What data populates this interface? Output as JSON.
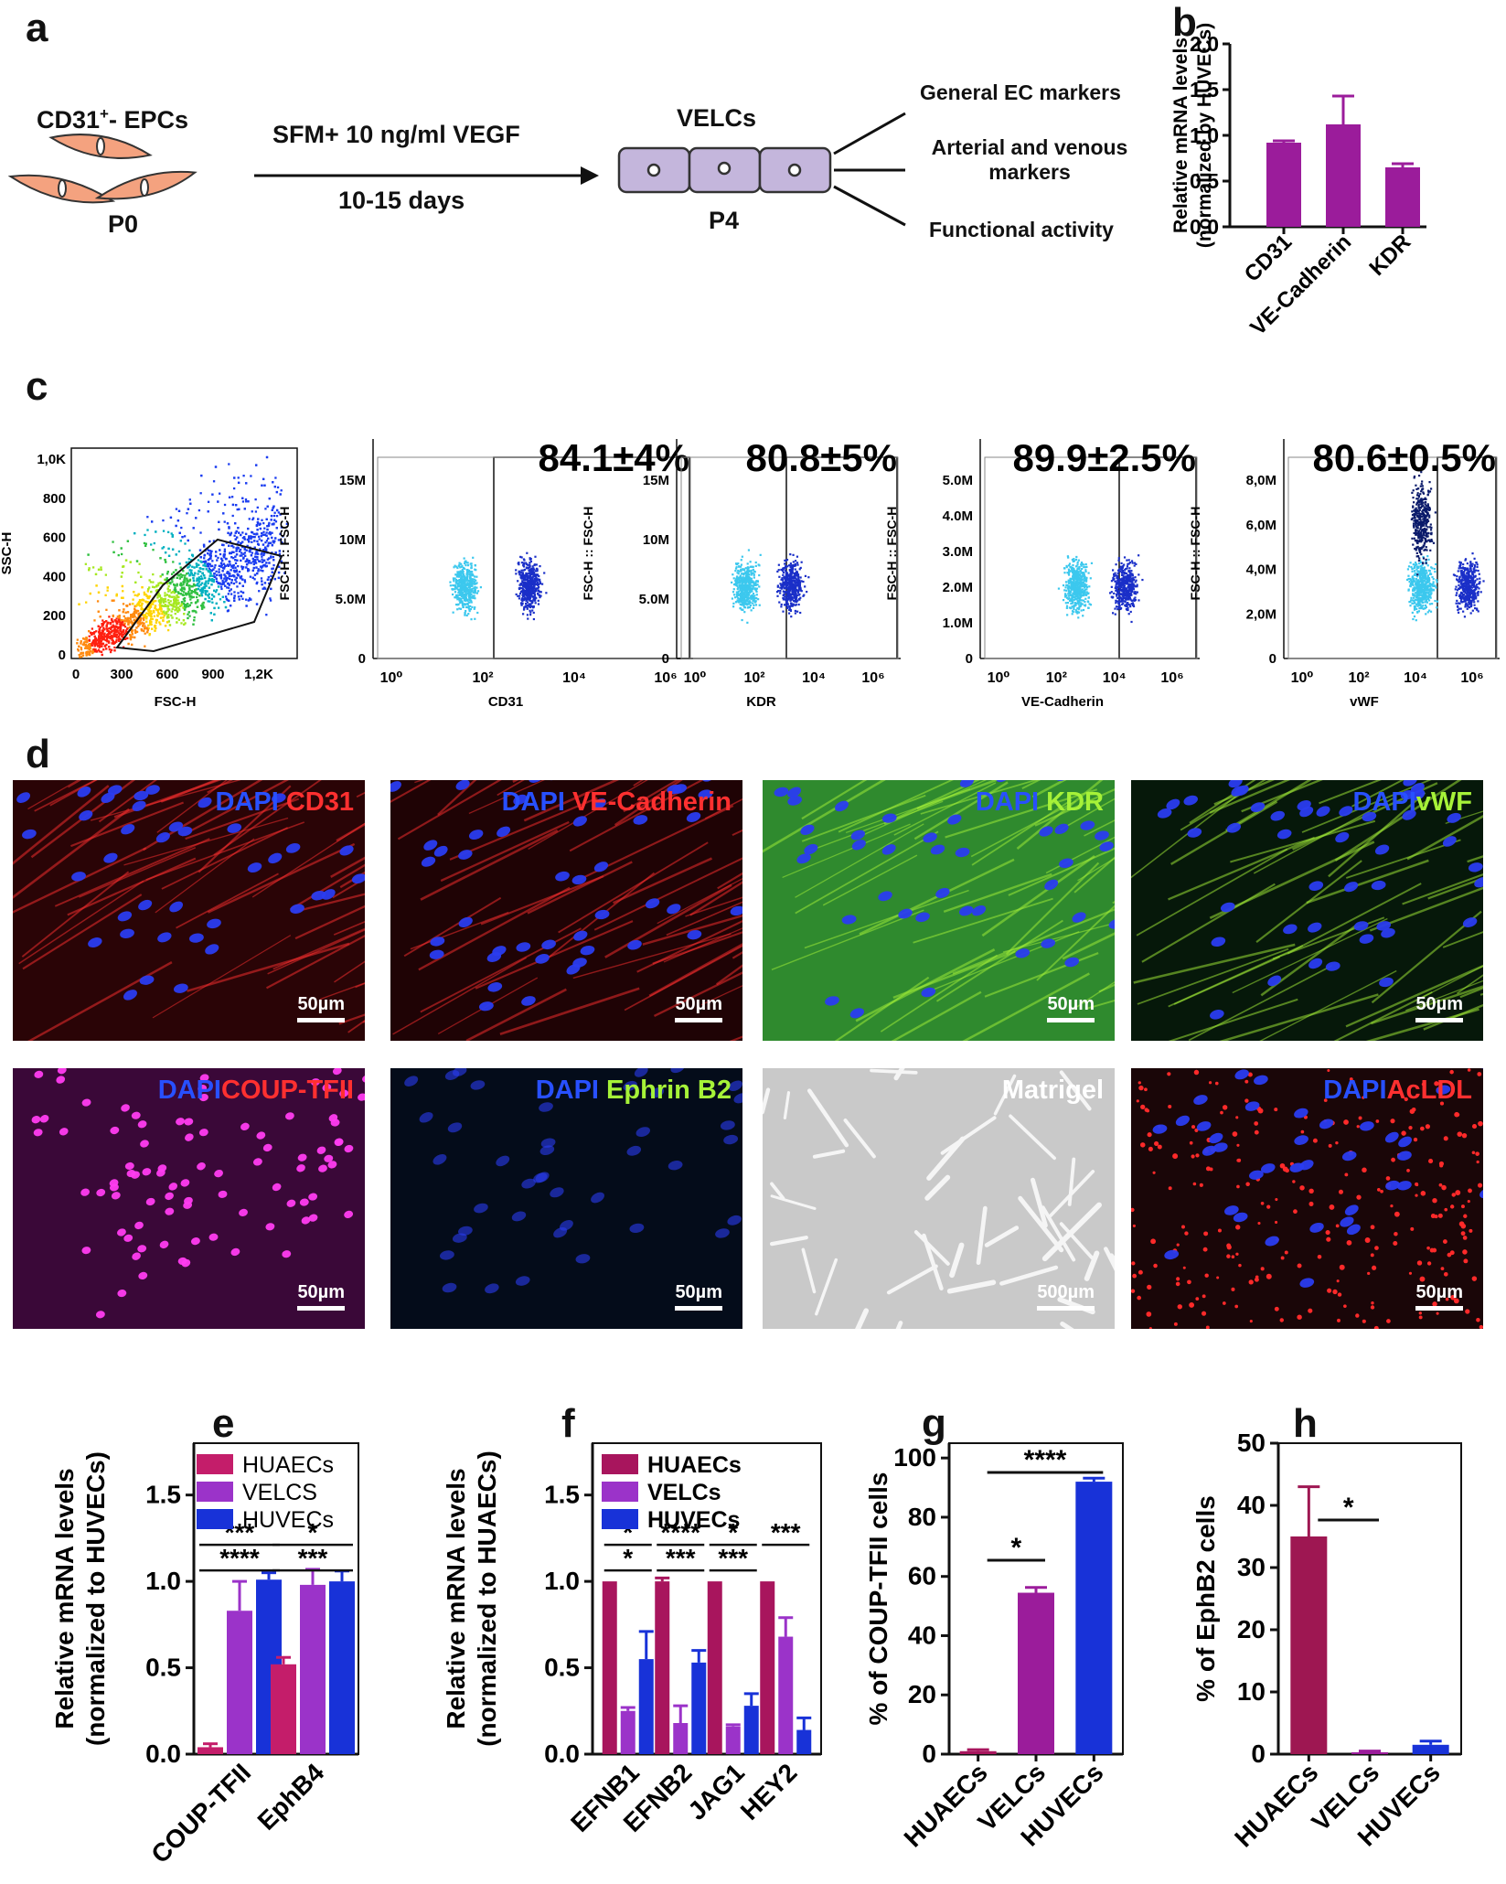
{
  "panel_letters": {
    "a": "a",
    "b": "b",
    "c": "c",
    "d": "d",
    "e": "e",
    "f": "f",
    "g": "g",
    "h": "h"
  },
  "panel_a": {
    "epcs_label": "CD31",
    "epcs_sup": "+",
    "epcs_suffix": "- EPCs",
    "passage_start": "P0",
    "condition": "SFM+ 10 ng/ml VEGF",
    "duration": "10-15 days",
    "velcs_label": "VELCs",
    "passage_end": "P4",
    "outcomes": [
      "General EC markers",
      "Arterial and venous markers",
      "Functional activity"
    ],
    "colors": {
      "epc_fill": "#f4a27f",
      "velc_fill": "#c4b6dc"
    }
  },
  "flow": {
    "scatter": {
      "y_label": "SSC-H",
      "x_label": "FSC-H",
      "y_ticks": [
        "1,0K",
        "800",
        "600",
        "400",
        "200",
        "0"
      ],
      "x_ticks": [
        "0",
        "300",
        "600",
        "900",
        "1,2K"
      ]
    },
    "histograms": [
      {
        "marker": "CD31",
        "y_label": "FSC-H :: FSC-H",
        "percent": "84.1±4%",
        "y_ticks": [
          "15M",
          "10M",
          "5.0M",
          "0"
        ],
        "x_ticks": [
          "10⁰",
          "10²",
          "10⁴",
          "10⁶"
        ]
      },
      {
        "marker": "KDR",
        "y_label": "FSC-H :: FSC-H",
        "percent": "80.8±5%",
        "y_ticks": [
          "15M",
          "10M",
          "5.0M",
          "0"
        ],
        "x_ticks": [
          "10⁰",
          "10²",
          "10⁴",
          "10⁶"
        ]
      },
      {
        "marker": "VE-Cadherin",
        "y_label": "FSC-H :: FSC-H",
        "percent": "89.9±2.5%",
        "y_ticks": [
          "5.0M",
          "4.0M",
          "3.0M",
          "2.0M",
          "1.0M",
          "0"
        ],
        "x_ticks": [
          "10⁰",
          "10²",
          "10⁴",
          "10⁶"
        ]
      },
      {
        "marker": "vWF",
        "y_label": "FSC-H :: FSC-H",
        "percent": "80.6±0.5%",
        "y_ticks": [
          "8,0M",
          "6,0M",
          "4,0M",
          "2,0M",
          "0"
        ],
        "x_ticks": [
          "10⁰",
          "10²",
          "10⁴",
          "10⁶"
        ]
      }
    ],
    "colors": {
      "neg": "#3cc8ee",
      "pos": "#1a2fc8"
    }
  },
  "micrographs": [
    {
      "stain1": "DAPI",
      "stain2": " CD31",
      "color2": "#ff3030",
      "scale": "50µm",
      "bg": "#2a0406"
    },
    {
      "stain1": "DAPI",
      "stain2": " VE-Cadherin",
      "color2": "#ff3030",
      "scale": "50µm",
      "bg": "#1f0305"
    },
    {
      "stain1": "DAPI",
      "stain2": " KDR",
      "color2": "#a6f238",
      "scale": "50µm",
      "bg": "#2f8a2e"
    },
    {
      "stain1": "DAPI",
      "stain2": "vWF",
      "color2": "#a6f238",
      "scale": "50µm",
      "bg": "#06180a"
    },
    {
      "stain1": "DAPI",
      "stain2": "COUP-TFII",
      "color2": "#ff3030",
      "scale": "50µm",
      "bg": "#3a0838"
    },
    {
      "stain1": "DAPI",
      "stain2": " Ephrin B2",
      "color2": "#a6f238",
      "scale": "50µm",
      "bg": "#040c1a"
    },
    {
      "stain1": "",
      "stain2": "Matrigel",
      "color2": "#ffffff",
      "scale": "500µm",
      "bg": "#c9c9c9"
    },
    {
      "stain1": "DAPI",
      "stain2": "AcLDL",
      "color2": "#ff3030",
      "scale": "50µm",
      "bg": "#1a0608"
    }
  ],
  "chart_data": [
    {
      "panel": "b",
      "type": "bar",
      "categories": [
        "CD31",
        "VE-Cadherin",
        "KDR"
      ],
      "values": [
        0.92,
        1.12,
        0.65
      ],
      "errors": [
        0.02,
        0.31,
        0.04
      ],
      "ylabel": "Relative mRNA levels (normalized by HUVECs)",
      "ylim": [
        0,
        2.0
      ],
      "yticks": [
        "0.0",
        "0.5",
        "1.0",
        "1.5",
        "2.0"
      ],
      "color": "#9b1c9b"
    },
    {
      "panel": "e",
      "type": "bar",
      "categories": [
        "COUP-TFII",
        "EphB4"
      ],
      "series": [
        {
          "name": "HUAECs",
          "values": [
            0.04,
            0.52
          ],
          "errors": [
            0.02,
            0.04
          ],
          "color": "#c41d6a"
        },
        {
          "name": "VELCS",
          "values": [
            0.83,
            0.98
          ],
          "errors": [
            0.17,
            0.09
          ],
          "color": "#9b33c9"
        },
        {
          "name": "HUVECs",
          "values": [
            1.01,
            1.0
          ],
          "errors": [
            0.04,
            0.06
          ],
          "color": "#1832d8"
        }
      ],
      "ylabel": "Relative mRNA levels (normalized to HUVECs)",
      "ylim": [
        0,
        1.8
      ],
      "yticks": [
        "0.0",
        "0.5",
        "1.0",
        "1.5"
      ],
      "annotations": [
        {
          "text": "***",
          "group": 0,
          "row": 1
        },
        {
          "text": "****",
          "group": 0,
          "row": 2
        },
        {
          "text": "*",
          "group": 1,
          "row": 1
        },
        {
          "text": "***",
          "group": 1,
          "row": 2
        }
      ]
    },
    {
      "panel": "f",
      "type": "bar",
      "categories": [
        "EFNB1",
        "EFNB2",
        "JAG1",
        "HEY2"
      ],
      "series": [
        {
          "name": "HUAECs",
          "values": [
            1.0,
            1.0,
            1.0,
            1.0
          ],
          "errors": [
            0,
            0.02,
            0,
            0
          ],
          "color": "#a8155d"
        },
        {
          "name": "VELCs",
          "values": [
            0.25,
            0.18,
            0.16,
            0.68
          ],
          "errors": [
            0.02,
            0.1,
            0.01,
            0.11
          ],
          "color": "#9b33c9"
        },
        {
          "name": "HUVECs",
          "values": [
            0.55,
            0.53,
            0.28,
            0.14
          ],
          "errors": [
            0.16,
            0.07,
            0.07,
            0.07
          ],
          "color": "#1832d8"
        }
      ],
      "ylabel": "Relative mRNA levels (normalized to HUAECs)",
      "ylim": [
        0,
        1.8
      ],
      "yticks": [
        "0.0",
        "0.5",
        "1.0",
        "1.5"
      ],
      "annotations": [
        {
          "text": "*",
          "group": 0,
          "row": 1
        },
        {
          "text": "*",
          "group": 0,
          "row": 2
        },
        {
          "text": "****",
          "group": 1,
          "row": 1
        },
        {
          "text": "***",
          "group": 1,
          "row": 2
        },
        {
          "text": "*",
          "group": 2,
          "row": 1
        },
        {
          "text": "***",
          "group": 2,
          "row": 2
        },
        {
          "text": "***",
          "group": 3,
          "row": 1
        }
      ]
    },
    {
      "panel": "g",
      "type": "bar",
      "categories": [
        "HUAECs",
        "VELCs",
        "HUVECs"
      ],
      "values": [
        1.0,
        54.5,
        92.0
      ],
      "errors": [
        0.5,
        1.8,
        1.2
      ],
      "colors": [
        "#a8155d",
        "#9b1c9b",
        "#1832d8"
      ],
      "ylabel": "% of COUP-TFII cells",
      "ylim": [
        0,
        105
      ],
      "yticks": [
        "0",
        "20",
        "40",
        "60",
        "80",
        "100"
      ],
      "annotations": [
        {
          "text": "****",
          "from": 0,
          "to": 2
        },
        {
          "text": "*",
          "from": 0,
          "to": 1
        }
      ]
    },
    {
      "panel": "h",
      "type": "bar",
      "categories": [
        "HUAECs",
        "VELCs",
        "HUVECs"
      ],
      "values": [
        35.0,
        0.3,
        1.5
      ],
      "errors": [
        8.0,
        0.2,
        0.6
      ],
      "colors": [
        "#9e1752",
        "#9b1c9b",
        "#1832d8"
      ],
      "ylabel": "% of EphB2 cells",
      "ylim": [
        0,
        50
      ],
      "yticks": [
        "0",
        "10",
        "20",
        "30",
        "40",
        "50"
      ],
      "annotations": [
        {
          "text": "*",
          "from": 0,
          "to": 1
        }
      ]
    }
  ]
}
